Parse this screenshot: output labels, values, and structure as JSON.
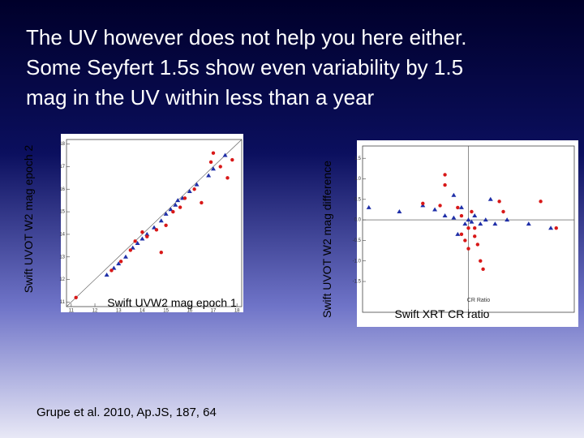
{
  "slide": {
    "title_lines": [
      "The UV however does not help you here either.",
      "Some Seyfert 1.5s show even variability by 1.5",
      "mag in the UV within less than a year"
    ],
    "citation": "Grupe et al. 2010, Ap.JS, 187, 64"
  },
  "chart_data": [
    {
      "type": "scatter",
      "x_label": "Swift UVW2 mag epoch 1",
      "y_label": "Swift UVOT W2 mag epoch 2",
      "xlim": [
        10.8,
        18.2
      ],
      "ylim": [
        10.8,
        18.2
      ],
      "xticks": [
        11,
        12,
        13,
        14,
        15,
        16,
        17,
        18
      ],
      "yticks": [
        11,
        12,
        13,
        14,
        15,
        16,
        17,
        18
      ],
      "series": [
        {
          "color": "#1f2fa8",
          "marker": "triangle",
          "x": [
            12.5,
            12.8,
            13.0,
            13.3,
            13.6,
            13.8,
            14.0,
            14.2,
            14.5,
            14.8,
            15.0,
            15.2,
            15.4,
            15.5,
            15.7,
            16.0,
            16.3,
            16.8,
            17.0,
            17.5
          ],
          "values": [
            12.2,
            12.5,
            12.7,
            13.0,
            13.4,
            13.6,
            13.8,
            14.0,
            14.3,
            14.6,
            14.9,
            15.1,
            15.3,
            15.5,
            15.6,
            15.9,
            16.2,
            16.6,
            16.9,
            17.5
          ]
        },
        {
          "color": "#d81818",
          "marker": "circle",
          "x": [
            11.2,
            12.7,
            13.1,
            13.5,
            13.7,
            14.0,
            14.2,
            14.6,
            15.0,
            15.3,
            15.6,
            15.8,
            16.2,
            16.5,
            16.9,
            17.3,
            17.6,
            17.8,
            17.0,
            14.8
          ],
          "values": [
            11.2,
            12.4,
            12.8,
            13.3,
            13.7,
            14.1,
            13.9,
            14.2,
            14.4,
            15.0,
            15.2,
            15.6,
            16.0,
            15.4,
            17.2,
            17.0,
            16.5,
            17.3,
            17.6,
            13.2
          ]
        }
      ]
    },
    {
      "type": "scatter",
      "x_label": "Swift XRT CR ratio",
      "y_label": "Swift UVOT W2 mag difference",
      "inner_x_label": "CR Ratio",
      "x_log": true,
      "xlim": [
        0.2,
        5
      ],
      "ylim": [
        -2.25,
        1.8
      ],
      "xticks": [
        1
      ],
      "yticks": [
        -1.5,
        {
          "value": -1,
          "label": "-1.0"
        },
        -0.5,
        {
          "value": 0,
          "label": "0.0"
        },
        0.5,
        {
          "value": 1,
          "label": "1.0"
        },
        1.5
      ],
      "series": [
        {
          "color": "#1f2fa8",
          "marker": "triangle",
          "x": [
            0.22,
            0.35,
            0.5,
            0.6,
            0.7,
            0.8,
            0.9,
            0.95,
            1.0,
            1.05,
            1.1,
            1.2,
            1.3,
            1.5,
            1.8,
            2.5,
            3.5,
            0.8,
            1.4,
            0.85
          ],
          "values": [
            0.3,
            0.2,
            0.35,
            0.25,
            0.1,
            0.05,
            0.3,
            -0.1,
            0.0,
            -0.05,
            0.1,
            -0.1,
            0.0,
            -0.1,
            0.0,
            -0.1,
            -0.2,
            0.6,
            0.5,
            -0.35
          ]
        },
        {
          "color": "#d81818",
          "marker": "circle",
          "x": [
            0.7,
            0.7,
            0.65,
            0.85,
            0.9,
            1.0,
            1.05,
            1.1,
            1.15,
            1.2,
            1.25,
            0.95,
            1.0,
            1.6,
            1.7,
            3.0,
            3.8,
            0.5,
            0.9,
            1.1
          ],
          "values": [
            1.1,
            0.85,
            0.35,
            0.3,
            0.1,
            -0.2,
            0.2,
            -0.4,
            -0.6,
            -1.0,
            -1.2,
            -0.5,
            -0.7,
            0.45,
            0.2,
            0.45,
            -0.2,
            0.4,
            -0.35,
            -0.2
          ]
        }
      ]
    }
  ]
}
